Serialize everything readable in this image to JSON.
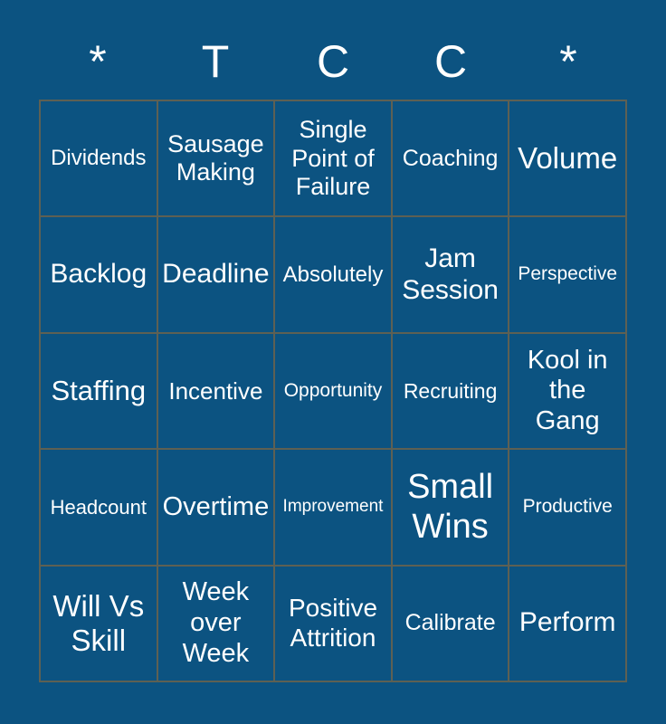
{
  "colors": {
    "background": "#0C5381",
    "grid_line": "#5E6053",
    "text": "#FFFFFF"
  },
  "header": {
    "letters": [
      "*",
      "T",
      "C",
      "C",
      "*"
    ]
  },
  "card": {
    "rows": [
      [
        {
          "label": "Dividends",
          "font_px": 24
        },
        {
          "label": "Sausage\nMaking",
          "font_px": 27
        },
        {
          "label": "Single\nPoint of\nFailure",
          "font_px": 27
        },
        {
          "label": "Coaching",
          "font_px": 25
        },
        {
          "label": "Volume",
          "font_px": 33
        }
      ],
      [
        {
          "label": "Backlog",
          "font_px": 30
        },
        {
          "label": "Deadline",
          "font_px": 30
        },
        {
          "label": "Absolutely",
          "font_px": 24
        },
        {
          "label": "Jam\nSession",
          "font_px": 30
        },
        {
          "label": "Perspective",
          "font_px": 21
        }
      ],
      [
        {
          "label": "Staffing",
          "font_px": 31
        },
        {
          "label": "Incentive",
          "font_px": 26
        },
        {
          "label": "Opportunity",
          "font_px": 21
        },
        {
          "label": "Recruiting",
          "font_px": 23
        },
        {
          "label": "Kool in\nthe\nGang",
          "font_px": 29
        }
      ],
      [
        {
          "label": "Headcount",
          "font_px": 22
        },
        {
          "label": "Overtime",
          "font_px": 29
        },
        {
          "label": "Improvement",
          "font_px": 19
        },
        {
          "label": "Small\nWins",
          "font_px": 38
        },
        {
          "label": "Productive",
          "font_px": 21
        }
      ],
      [
        {
          "label": "Will Vs\nSkill",
          "font_px": 33
        },
        {
          "label": "Week\nover\nWeek",
          "font_px": 29
        },
        {
          "label": "Positive\nAttrition",
          "font_px": 28
        },
        {
          "label": "Calibrate",
          "font_px": 25
        },
        {
          "label": "Perform",
          "font_px": 30
        }
      ]
    ]
  }
}
